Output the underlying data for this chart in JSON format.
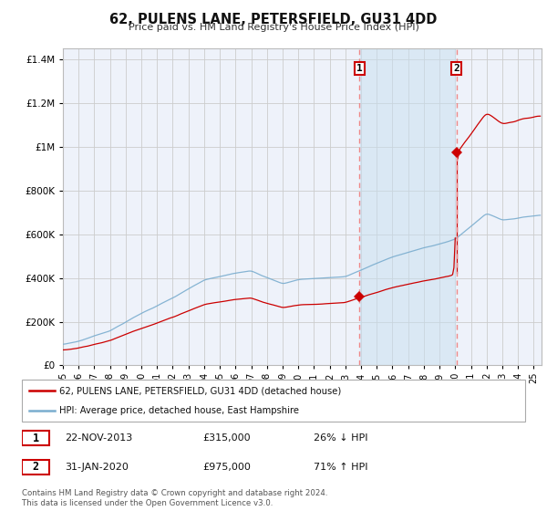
{
  "title": "62, PULENS LANE, PETERSFIELD, GU31 4DD",
  "subtitle": "Price paid vs. HM Land Registry's House Price Index (HPI)",
  "legend_line1": "62, PULENS LANE, PETERSFIELD, GU31 4DD (detached house)",
  "legend_line2": "HPI: Average price, detached house, East Hampshire",
  "transaction1": {
    "label": "1",
    "date": "22-NOV-2013",
    "price": "£315,000",
    "hpi_text": "26% ↓ HPI",
    "year": 2013.9
  },
  "transaction2": {
    "label": "2",
    "date": "31-JAN-2020",
    "price": "£975,000",
    "hpi_text": "71% ↑ HPI",
    "year": 2020.08
  },
  "price_line_color": "#cc0000",
  "hpi_line_color": "#7aadcf",
  "vline_color": "#ee8888",
  "marker_color": "#cc0000",
  "fill_color": "#c8dff0",
  "ylim": [
    0,
    1450000
  ],
  "xlim": [
    1995.0,
    2025.5
  ],
  "footer": "Contains HM Land Registry data © Crown copyright and database right 2024.\nThis data is licensed under the Open Government Licence v3.0.",
  "background_color": "#ffffff",
  "plot_bg_color": "#eef2fa",
  "grid_color": "#cccccc"
}
